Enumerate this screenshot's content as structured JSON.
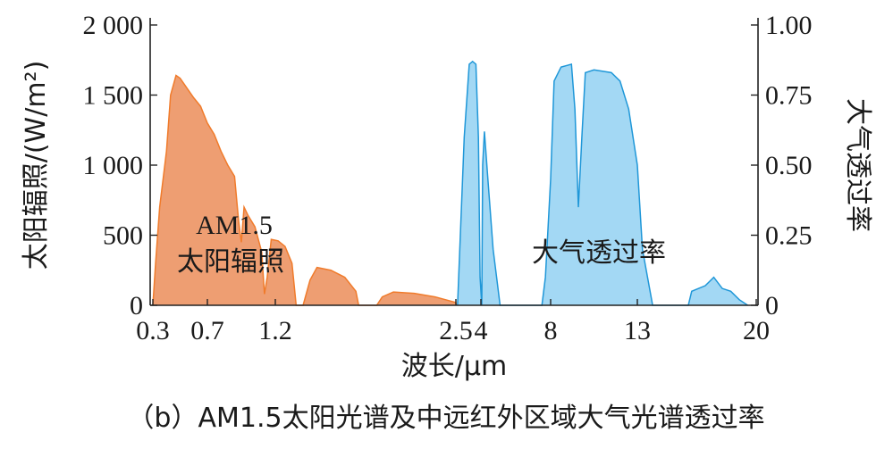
{
  "chart_data": {
    "type": "area",
    "caption": "（b）AM1.5太阳光谱及中远红外区域大气光谱透过率",
    "xlabel": "波长/μm",
    "ylabel_left": "太阳辐照/(W/m²)",
    "ylabel_right": "大气透过率",
    "x_ticks": [
      0.3,
      0.7,
      1.2,
      2.5,
      4,
      8,
      13,
      20
    ],
    "x_tick_labels": [
      "0.3",
      "0.7",
      "1.2",
      "2.5",
      "4",
      "8",
      "13",
      "20"
    ],
    "x_scale": "piecewise (non-uniform)",
    "ylim_left": [
      0,
      2000
    ],
    "y_ticks_left": [
      0,
      500,
      1000,
      1500,
      2000
    ],
    "y_tick_labels_left": [
      "0",
      "500",
      "1 000",
      "1 500",
      "2 000"
    ],
    "ylim_right": [
      0,
      1.0
    ],
    "y_ticks_right": [
      0,
      0.25,
      0.5,
      0.75,
      1.0
    ],
    "y_tick_labels_right": [
      "0",
      "0.25",
      "0.50",
      "0.75",
      "1.00"
    ],
    "grid": false,
    "annotations": {
      "solar_line1": "AM1.5",
      "solar_line2": "太阳辐照",
      "atm": "大气透过率"
    },
    "series": [
      {
        "name": "AM1.5 太阳辐照",
        "axis": "left",
        "color": "#ee9e72",
        "edge": "#f07b2b",
        "points": [
          [
            0.3,
            0
          ],
          [
            0.32,
            300
          ],
          [
            0.35,
            700
          ],
          [
            0.4,
            1100
          ],
          [
            0.43,
            1500
          ],
          [
            0.47,
            1640
          ],
          [
            0.5,
            1620
          ],
          [
            0.55,
            1550
          ],
          [
            0.6,
            1480
          ],
          [
            0.65,
            1420
          ],
          [
            0.7,
            1300
          ],
          [
            0.75,
            1220
          ],
          [
            0.8,
            1100
          ],
          [
            0.85,
            1000
          ],
          [
            0.9,
            920
          ],
          [
            0.93,
            600
          ],
          [
            0.95,
            450
          ],
          [
            0.97,
            700
          ],
          [
            1.0,
            640
          ],
          [
            1.05,
            560
          ],
          [
            1.1,
            380
          ],
          [
            1.12,
            80
          ],
          [
            1.14,
            200
          ],
          [
            1.17,
            470
          ],
          [
            1.22,
            460
          ],
          [
            1.27,
            420
          ],
          [
            1.32,
            300
          ],
          [
            1.35,
            0
          ],
          [
            1.4,
            0
          ],
          [
            1.45,
            180
          ],
          [
            1.5,
            270
          ],
          [
            1.6,
            250
          ],
          [
            1.7,
            200
          ],
          [
            1.78,
            100
          ],
          [
            1.8,
            0
          ],
          [
            1.93,
            0
          ],
          [
            1.97,
            60
          ],
          [
            2.05,
            95
          ],
          [
            2.2,
            85
          ],
          [
            2.35,
            60
          ],
          [
            2.5,
            20
          ],
          [
            2.52,
            0
          ]
        ]
      },
      {
        "name": "大气透过率",
        "axis": "right",
        "color": "#a3d8f4",
        "edge": "#1f97d8",
        "points": [
          [
            2.6,
            0
          ],
          [
            2.8,
            0.3
          ],
          [
            3.0,
            0.6
          ],
          [
            3.3,
            0.86
          ],
          [
            3.5,
            0.87
          ],
          [
            3.7,
            0.86
          ],
          [
            3.85,
            0.6
          ],
          [
            3.95,
            0.1
          ],
          [
            4.05,
            0
          ],
          [
            4.1,
            0.5
          ],
          [
            4.2,
            0.62
          ],
          [
            4.4,
            0.45
          ],
          [
            4.7,
            0.2
          ],
          [
            5.1,
            0
          ],
          [
            7.5,
            0
          ],
          [
            7.7,
            0.1
          ],
          [
            8.0,
            0.45
          ],
          [
            8.2,
            0.8
          ],
          [
            8.6,
            0.85
          ],
          [
            9.2,
            0.86
          ],
          [
            9.4,
            0.7
          ],
          [
            9.6,
            0.35
          ],
          [
            9.8,
            0.6
          ],
          [
            10.0,
            0.83
          ],
          [
            10.5,
            0.84
          ],
          [
            11.5,
            0.83
          ],
          [
            12,
            0.8
          ],
          [
            12.5,
            0.7
          ],
          [
            13,
            0.5
          ],
          [
            13.3,
            0.2
          ],
          [
            13.6,
            0.1
          ],
          [
            13.9,
            0
          ],
          [
            16,
            0
          ],
          [
            16.2,
            0.05
          ],
          [
            17,
            0.07
          ],
          [
            17.5,
            0.1
          ],
          [
            18,
            0.06
          ],
          [
            18.5,
            0.05
          ],
          [
            19,
            0.02
          ],
          [
            19.5,
            0
          ]
        ]
      }
    ]
  }
}
